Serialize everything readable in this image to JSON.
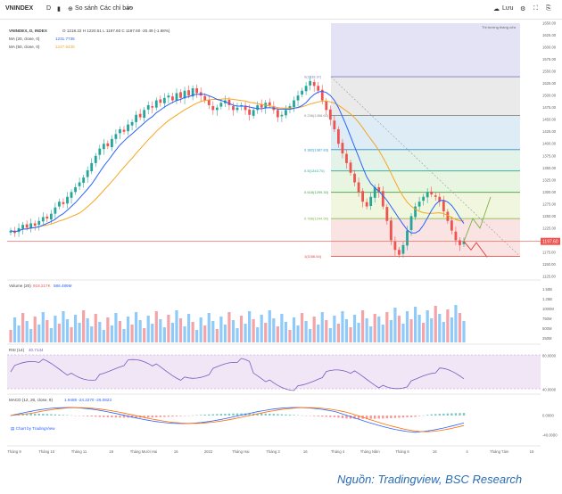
{
  "toolbar": {
    "symbol": "VNINDEX",
    "interval": "D",
    "compare_label": "So sánh",
    "indicators_label": "Các chỉ báo",
    "save_label": "Lưu"
  },
  "legend": {
    "title": "VNINDEX, D, INDEX",
    "ohlc": "O 1218.22  H 1220.51  L 1197.60  C 1197.60  -20.49 (-1.68%)",
    "ma20_label": "MA (20, close, 0)",
    "ma20_value": "1231.7735",
    "ma50_label": "MA (50, close, 0)",
    "ma50_value": "1247.6436"
  },
  "fib_levels": [
    {
      "label": "0(1538.97)",
      "price": 1538.97
    },
    {
      "label": "0.236(1458.60)",
      "price": 1458.6
    },
    {
      "label": "0.382(1387.83)",
      "price": 1387.83
    },
    {
      "label": "0.5(1343.70)",
      "price": 1343.7
    },
    {
      "label": "0.618(1299.30)",
      "price": 1299.3
    },
    {
      "label": "0.786(1244.90)",
      "price": 1244.9
    },
    {
      "label": "1(1166.54)",
      "price": 1166.54
    }
  ],
  "fib_note": "Thị trường tháng cửa",
  "price_axis": [
    "1650.00",
    "1625.00",
    "1600.00",
    "1575.00",
    "1550.00",
    "1525.00",
    "1500.00",
    "1475.00",
    "1450.00",
    "1425.00",
    "1400.00",
    "1375.00",
    "1350.00",
    "1325.00",
    "1300.00",
    "1275.00",
    "1250.00",
    "1225.00",
    "1200.00",
    "1175.00",
    "1150.00",
    "1125.00"
  ],
  "last_price_tag": "1197.60",
  "volume": {
    "label": "Volume (20)",
    "value1": "918.217K",
    "value2": "586.489M",
    "axis": [
      "1.50B",
      "1.25B",
      "1000M",
      "750M",
      "500M",
      "250M"
    ]
  },
  "rsi": {
    "label": "RSI (14)",
    "value": "40.7144",
    "axis": [
      "80.0000",
      "40.0000"
    ]
  },
  "macd": {
    "label": "MACD (12, 26, close, 9)",
    "values": "1.9488  -24.2270  -26.0823",
    "axis": [
      "0.0000",
      "-40.0000"
    ]
  },
  "x_axis": [
    "Tháng 9",
    "Tháng 10",
    "Tháng 11",
    "16",
    "Tháng Mười Hai",
    "16",
    "2022",
    "Tháng Hai",
    "Tháng 3",
    "16",
    "Tháng 4",
    "Tháng Năm",
    "Tháng 6",
    "16",
    "4",
    "Tháng Tám",
    "16"
  ],
  "watermark": "Chart by TradingView",
  "source": "Nguồn: Tradingview, BSC Research",
  "colors": {
    "candle_up": "#26a69a",
    "candle_down": "#ef5350",
    "ma20": "#2962ff",
    "ma50": "#f6a623",
    "fib_top": "#e8e8f3",
    "rsi_band": "#f0e6f6",
    "source_text": "#2a6db5"
  },
  "chart_data": {
    "type": "candlestick",
    "title": "VNINDEX, D, INDEX",
    "close_series_approx": [
      1220,
      1215,
      1225,
      1232,
      1226,
      1235,
      1230,
      1240,
      1248,
      1245,
      1255,
      1268,
      1280,
      1275,
      1290,
      1300,
      1310,
      1320,
      1330,
      1345,
      1360,
      1375,
      1390,
      1400,
      1395,
      1410,
      1420,
      1430,
      1425,
      1440,
      1445,
      1460,
      1455,
      1470,
      1480,
      1475,
      1490,
      1485,
      1495,
      1500,
      1490,
      1505,
      1495,
      1510,
      1500,
      1515,
      1505,
      1500,
      1490,
      1480,
      1470,
      1475,
      1485,
      1490,
      1480,
      1470,
      1475,
      1480,
      1470,
      1460,
      1470,
      1480,
      1475,
      1485,
      1480,
      1470,
      1455,
      1460,
      1470,
      1478,
      1490,
      1500,
      1510,
      1520,
      1530,
      1520,
      1510,
      1490,
      1470,
      1450,
      1430,
      1400,
      1380,
      1360,
      1340,
      1320,
      1300,
      1280,
      1270,
      1290,
      1310,
      1300,
      1270,
      1240,
      1200,
      1180,
      1170,
      1190,
      1220,
      1250,
      1270,
      1280,
      1290,
      1300,
      1295,
      1290,
      1280,
      1260,
      1240,
      1220,
      1200,
      1190,
      1197.6
    ],
    "ylim": [
      1125,
      1650
    ]
  }
}
